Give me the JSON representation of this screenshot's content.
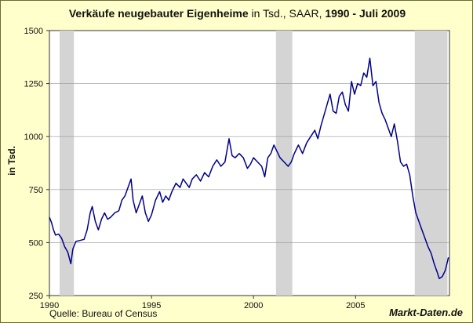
{
  "chart_data": {
    "type": "line",
    "title_parts": [
      {
        "text": "Verkäufe neugebauter Eigenheime",
        "bold": true
      },
      {
        "text": " in Tsd., SAAR, ",
        "bold": false
      },
      {
        "text": "1990 -  Juli 2009",
        "bold": true
      }
    ],
    "xlabel": "",
    "ylabel": "in Tsd.",
    "xlim": [
      1990,
      2009.6
    ],
    "ylim": [
      250,
      1500
    ],
    "x_ticks": [
      1990,
      1995,
      2000,
      2005
    ],
    "y_ticks": [
      250,
      500,
      750,
      1000,
      1250,
      1500
    ],
    "y_tick_labels": [
      "250",
      "500",
      "750",
      "1000",
      "1250",
      "1500"
    ],
    "grid": "horizontal",
    "recession_bands": [
      [
        1990.5,
        1991.2
      ],
      [
        2001.1,
        2001.9
      ],
      [
        2007.9,
        2009.5
      ]
    ],
    "line_color": "#00008b",
    "series": [
      {
        "values": [
          [
            1990.0,
            620
          ],
          [
            1990.1,
            595
          ],
          [
            1990.2,
            560
          ],
          [
            1990.3,
            535
          ],
          [
            1990.45,
            540
          ],
          [
            1990.6,
            520
          ],
          [
            1990.75,
            480
          ],
          [
            1990.9,
            455
          ],
          [
            1991.05,
            400
          ],
          [
            1991.15,
            470
          ],
          [
            1991.3,
            505
          ],
          [
            1991.5,
            510
          ],
          [
            1991.7,
            515
          ],
          [
            1991.85,
            560
          ],
          [
            1992.0,
            640
          ],
          [
            1992.1,
            670
          ],
          [
            1992.25,
            600
          ],
          [
            1992.4,
            560
          ],
          [
            1992.55,
            610
          ],
          [
            1992.7,
            640
          ],
          [
            1992.85,
            610
          ],
          [
            1993.0,
            620
          ],
          [
            1993.2,
            640
          ],
          [
            1993.4,
            650
          ],
          [
            1993.55,
            700
          ],
          [
            1993.7,
            720
          ],
          [
            1993.85,
            760
          ],
          [
            1994.0,
            800
          ],
          [
            1994.1,
            700
          ],
          [
            1994.25,
            640
          ],
          [
            1994.4,
            680
          ],
          [
            1994.55,
            720
          ],
          [
            1994.7,
            640
          ],
          [
            1994.85,
            600
          ],
          [
            1995.0,
            630
          ],
          [
            1995.2,
            700
          ],
          [
            1995.4,
            740
          ],
          [
            1995.55,
            690
          ],
          [
            1995.7,
            720
          ],
          [
            1995.85,
            700
          ],
          [
            1996.0,
            740
          ],
          [
            1996.2,
            780
          ],
          [
            1996.4,
            760
          ],
          [
            1996.55,
            800
          ],
          [
            1996.7,
            780
          ],
          [
            1996.85,
            760
          ],
          [
            1997.0,
            800
          ],
          [
            1997.2,
            820
          ],
          [
            1997.4,
            790
          ],
          [
            1997.6,
            830
          ],
          [
            1997.8,
            810
          ],
          [
            1998.0,
            860
          ],
          [
            1998.2,
            890
          ],
          [
            1998.4,
            860
          ],
          [
            1998.6,
            880
          ],
          [
            1998.8,
            990
          ],
          [
            1998.95,
            910
          ],
          [
            1999.1,
            900
          ],
          [
            1999.3,
            920
          ],
          [
            1999.5,
            900
          ],
          [
            1999.7,
            850
          ],
          [
            1999.85,
            870
          ],
          [
            2000.0,
            900
          ],
          [
            2000.2,
            880
          ],
          [
            2000.4,
            860
          ],
          [
            2000.55,
            810
          ],
          [
            2000.7,
            900
          ],
          [
            2000.85,
            920
          ],
          [
            2001.0,
            960
          ],
          [
            2001.15,
            930
          ],
          [
            2001.3,
            900
          ],
          [
            2001.5,
            880
          ],
          [
            2001.7,
            860
          ],
          [
            2001.85,
            880
          ],
          [
            2002.0,
            920
          ],
          [
            2002.2,
            960
          ],
          [
            2002.4,
            920
          ],
          [
            2002.6,
            970
          ],
          [
            2002.8,
            1000
          ],
          [
            2003.0,
            1030
          ],
          [
            2003.15,
            990
          ],
          [
            2003.3,
            1050
          ],
          [
            2003.45,
            1100
          ],
          [
            2003.6,
            1150
          ],
          [
            2003.75,
            1200
          ],
          [
            2003.9,
            1120
          ],
          [
            2004.05,
            1110
          ],
          [
            2004.2,
            1190
          ],
          [
            2004.35,
            1210
          ],
          [
            2004.5,
            1150
          ],
          [
            2004.65,
            1120
          ],
          [
            2004.8,
            1260
          ],
          [
            2004.95,
            1200
          ],
          [
            2005.1,
            1250
          ],
          [
            2005.25,
            1240
          ],
          [
            2005.4,
            1300
          ],
          [
            2005.55,
            1280
          ],
          [
            2005.7,
            1370
          ],
          [
            2005.85,
            1240
          ],
          [
            2006.0,
            1260
          ],
          [
            2006.15,
            1160
          ],
          [
            2006.3,
            1110
          ],
          [
            2006.45,
            1080
          ],
          [
            2006.6,
            1040
          ],
          [
            2006.75,
            1000
          ],
          [
            2006.9,
            1060
          ],
          [
            2007.05,
            980
          ],
          [
            2007.2,
            880
          ],
          [
            2007.35,
            860
          ],
          [
            2007.5,
            870
          ],
          [
            2007.65,
            820
          ],
          [
            2007.8,
            720
          ],
          [
            2007.95,
            640
          ],
          [
            2008.1,
            600
          ],
          [
            2008.25,
            560
          ],
          [
            2008.4,
            520
          ],
          [
            2008.55,
            480
          ],
          [
            2008.7,
            450
          ],
          [
            2008.85,
            400
          ],
          [
            2009.0,
            360
          ],
          [
            2009.1,
            330
          ],
          [
            2009.25,
            340
          ],
          [
            2009.4,
            370
          ],
          [
            2009.55,
            430
          ]
        ]
      }
    ]
  },
  "footer": {
    "source": "Quelle: Bureau of Census",
    "brand": "Markt-Daten.de"
  }
}
